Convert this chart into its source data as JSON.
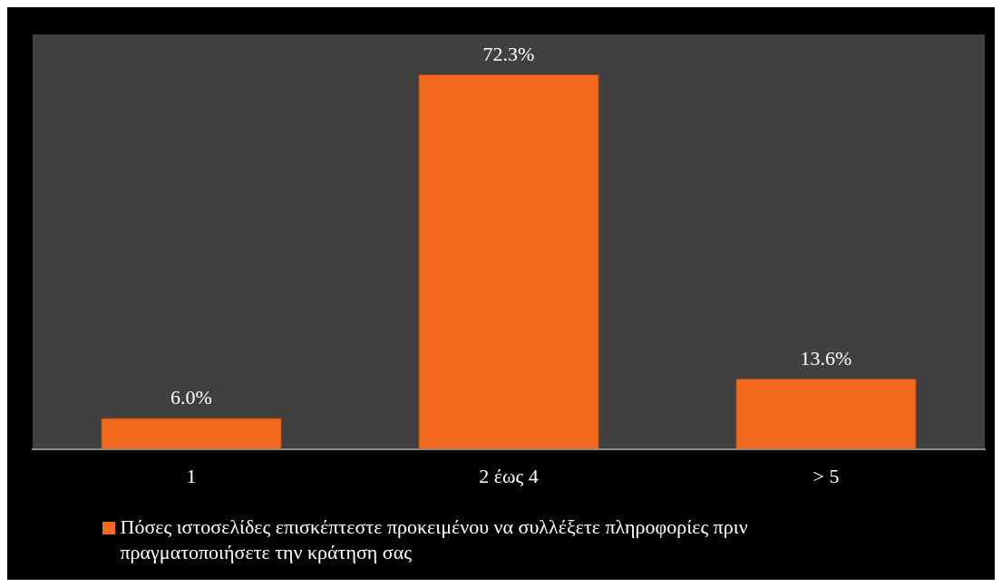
{
  "chart_data": {
    "type": "bar",
    "categories": [
      "1",
      "2 έως 4",
      "> 5"
    ],
    "series": [
      {
        "name": "Πόσες ιστοσελίδες επισκέπτεστε προκειμένου να συλλέξετε πληροφορίες πριν πραγματοποιήσετε την κράτηση σας",
        "color": "#f2691e",
        "values": [
          6.0,
          72.3,
          13.6
        ],
        "value_labels": [
          "6.0%",
          "72.3%",
          "13.6%"
        ]
      }
    ],
    "legend": "bottom",
    "grid": false
  }
}
